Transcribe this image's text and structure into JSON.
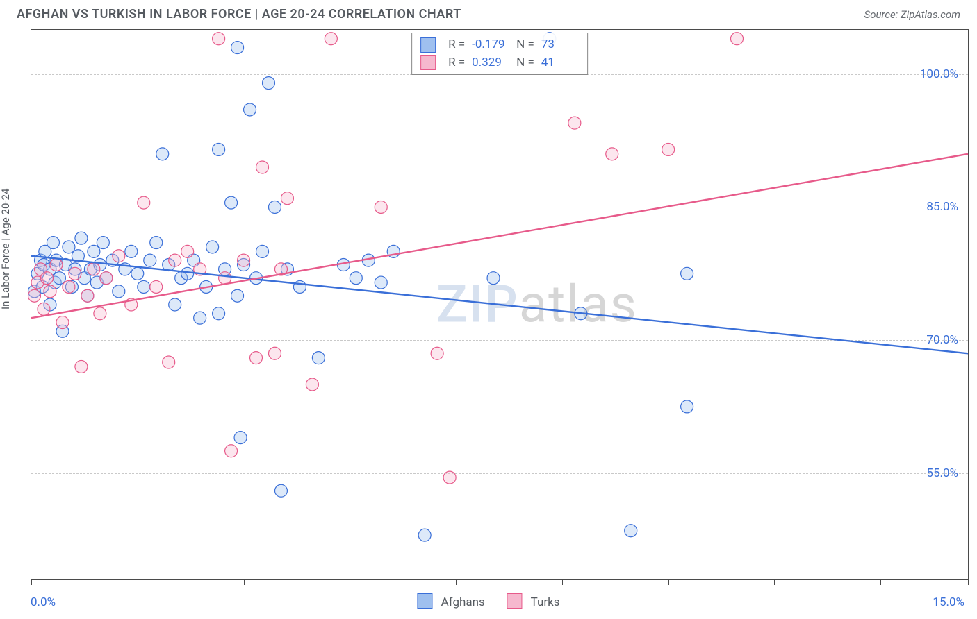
{
  "title": "AFGHAN VS TURKISH IN LABOR FORCE | AGE 20-24 CORRELATION CHART",
  "source_label": "Source: ZipAtlas.com",
  "watermark": {
    "part1": "ZIP",
    "part2": "atlas"
  },
  "chart": {
    "type": "scatter+regression",
    "ylabel": "In Labor Force | Age 20-24",
    "xlim": [
      0,
      15
    ],
    "ylim": [
      43,
      105
    ],
    "x_tick_positions": [
      0,
      1.7,
      3.4,
      5.1,
      6.8,
      8.5,
      10.2,
      11.9,
      13.6,
      15
    ],
    "x_axis_left_label": "0.0%",
    "x_axis_right_label": "15.0%",
    "y_gridlines": [
      55,
      70,
      85,
      100
    ],
    "y_tick_labels": [
      "55.0%",
      "70.0%",
      "85.0%",
      "100.0%"
    ],
    "background_color": "#ffffff",
    "grid_color": "#c9c9c9",
    "axis_color": "#4a4a4a",
    "marker_radius": 9,
    "marker_stroke_width": 1.2,
    "marker_fill_opacity": 0.35,
    "line_width": 2.4,
    "label_fontsize": 15,
    "tick_fontsize": 17,
    "series": [
      {
        "key": "afghans",
        "label": "Afghans",
        "color": "#3a6fd8",
        "fill": "#9fc0ef",
        "stats": {
          "R": "-0.179",
          "N": "73"
        },
        "regression": {
          "x1": 0,
          "y1": 79.5,
          "x2": 15,
          "y2": 68.5
        },
        "points": [
          [
            0.05,
            75.5
          ],
          [
            0.1,
            77.5
          ],
          [
            0.15,
            79.0
          ],
          [
            0.18,
            76.0
          ],
          [
            0.2,
            78.5
          ],
          [
            0.22,
            80.0
          ],
          [
            0.3,
            74.0
          ],
          [
            0.3,
            78.0
          ],
          [
            0.35,
            81.0
          ],
          [
            0.38,
            76.5
          ],
          [
            0.4,
            79.0
          ],
          [
            0.45,
            77.0
          ],
          [
            0.5,
            71.0
          ],
          [
            0.55,
            78.5
          ],
          [
            0.6,
            80.5
          ],
          [
            0.65,
            76.0
          ],
          [
            0.7,
            78.0
          ],
          [
            0.75,
            79.5
          ],
          [
            0.8,
            81.5
          ],
          [
            0.85,
            77.0
          ],
          [
            0.9,
            75.0
          ],
          [
            0.95,
            78.0
          ],
          [
            1.0,
            80.0
          ],
          [
            1.05,
            76.5
          ],
          [
            1.1,
            78.5
          ],
          [
            1.15,
            81.0
          ],
          [
            1.2,
            77.0
          ],
          [
            1.3,
            79.0
          ],
          [
            1.4,
            75.5
          ],
          [
            1.5,
            78.0
          ],
          [
            1.6,
            80.0
          ],
          [
            1.7,
            77.5
          ],
          [
            1.8,
            76.0
          ],
          [
            1.9,
            79.0
          ],
          [
            2.0,
            81.0
          ],
          [
            2.1,
            91.0
          ],
          [
            2.2,
            78.5
          ],
          [
            2.3,
            74.0
          ],
          [
            2.4,
            77.0
          ],
          [
            2.5,
            77.5
          ],
          [
            2.6,
            79.0
          ],
          [
            2.7,
            72.5
          ],
          [
            2.8,
            76.0
          ],
          [
            2.9,
            80.5
          ],
          [
            3.0,
            91.5
          ],
          [
            3.0,
            73.0
          ],
          [
            3.1,
            78.0
          ],
          [
            3.2,
            85.5
          ],
          [
            3.3,
            103.0
          ],
          [
            3.3,
            75.0
          ],
          [
            3.35,
            59.0
          ],
          [
            3.4,
            78.5
          ],
          [
            3.5,
            96.0
          ],
          [
            3.6,
            77.0
          ],
          [
            3.7,
            80.0
          ],
          [
            3.8,
            99.0
          ],
          [
            3.9,
            85.0
          ],
          [
            4.0,
            53.0
          ],
          [
            4.1,
            78.0
          ],
          [
            4.3,
            76.0
          ],
          [
            4.6,
            68.0
          ],
          [
            5.0,
            78.5
          ],
          [
            5.2,
            77.0
          ],
          [
            5.4,
            79.0
          ],
          [
            5.6,
            76.5
          ],
          [
            5.8,
            80.0
          ],
          [
            6.3,
            48.0
          ],
          [
            7.4,
            77.0
          ],
          [
            8.3,
            104.0
          ],
          [
            8.8,
            73.0
          ],
          [
            9.6,
            48.5
          ],
          [
            10.5,
            62.5
          ],
          [
            10.5,
            77.5
          ]
        ]
      },
      {
        "key": "turks",
        "label": "Turks",
        "color": "#e75a8a",
        "fill": "#f6b8ce",
        "stats": {
          "R": "0.329",
          "N": "41"
        },
        "regression": {
          "x1": 0,
          "y1": 72.5,
          "x2": 15,
          "y2": 91.0
        },
        "points": [
          [
            0.05,
            75.0
          ],
          [
            0.1,
            76.5
          ],
          [
            0.15,
            78.0
          ],
          [
            0.2,
            73.5
          ],
          [
            0.25,
            77.0
          ],
          [
            0.3,
            75.5
          ],
          [
            0.4,
            78.5
          ],
          [
            0.5,
            72.0
          ],
          [
            0.6,
            76.0
          ],
          [
            0.7,
            77.5
          ],
          [
            0.8,
            67.0
          ],
          [
            0.9,
            75.0
          ],
          [
            1.0,
            78.0
          ],
          [
            1.1,
            73.0
          ],
          [
            1.2,
            77.0
          ],
          [
            1.4,
            79.5
          ],
          [
            1.6,
            74.0
          ],
          [
            1.8,
            85.5
          ],
          [
            2.0,
            76.0
          ],
          [
            2.2,
            67.5
          ],
          [
            2.3,
            79.0
          ],
          [
            2.5,
            80.0
          ],
          [
            2.7,
            78.0
          ],
          [
            3.0,
            104.0
          ],
          [
            3.1,
            77.0
          ],
          [
            3.2,
            57.5
          ],
          [
            3.4,
            79.0
          ],
          [
            3.6,
            68.0
          ],
          [
            3.7,
            89.5
          ],
          [
            3.9,
            68.5
          ],
          [
            4.0,
            78.0
          ],
          [
            4.1,
            86.0
          ],
          [
            4.5,
            65.0
          ],
          [
            4.8,
            104.0
          ],
          [
            5.6,
            85.0
          ],
          [
            6.5,
            68.5
          ],
          [
            6.7,
            54.5
          ],
          [
            8.7,
            94.5
          ],
          [
            9.3,
            91.0
          ],
          [
            10.2,
            91.5
          ],
          [
            11.3,
            104.0
          ]
        ]
      }
    ],
    "legend_bottom": [
      {
        "label": "Afghans",
        "fill": "#9fc0ef",
        "stroke": "#3a6fd8"
      },
      {
        "label": "Turks",
        "fill": "#f6b8ce",
        "stroke": "#e75a8a"
      }
    ]
  }
}
